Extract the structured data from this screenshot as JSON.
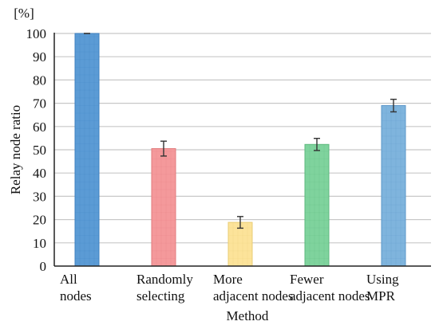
{
  "chart_data": {
    "type": "bar",
    "unit_label": "[%]",
    "ylabel": "Relay node ratio",
    "xlabel": "Method",
    "ylim": [
      0,
      100
    ],
    "yticks": [
      0,
      10,
      20,
      30,
      40,
      50,
      60,
      70,
      80,
      90,
      100
    ],
    "grid": true,
    "categories": [
      [
        "All",
        "nodes"
      ],
      [
        "Randomly",
        "selecting"
      ],
      [
        "More",
        "adjacent nodes"
      ],
      [
        "Fewer",
        "adjacent nodes"
      ],
      [
        "Using",
        "MPR"
      ]
    ],
    "values": [
      100,
      50.5,
      18.8,
      52.3,
      69.0
    ],
    "errors": [
      0,
      3.2,
      2.5,
      2.6,
      2.7
    ],
    "colors": [
      "#5b9bd5",
      "#f4999b",
      "#fce39a",
      "#7fd39d",
      "#7fb4dd"
    ],
    "edge_colors": [
      "#3f80c0",
      "#e27b7d",
      "#e9cc74",
      "#5cb87e",
      "#5b97c9"
    ]
  }
}
